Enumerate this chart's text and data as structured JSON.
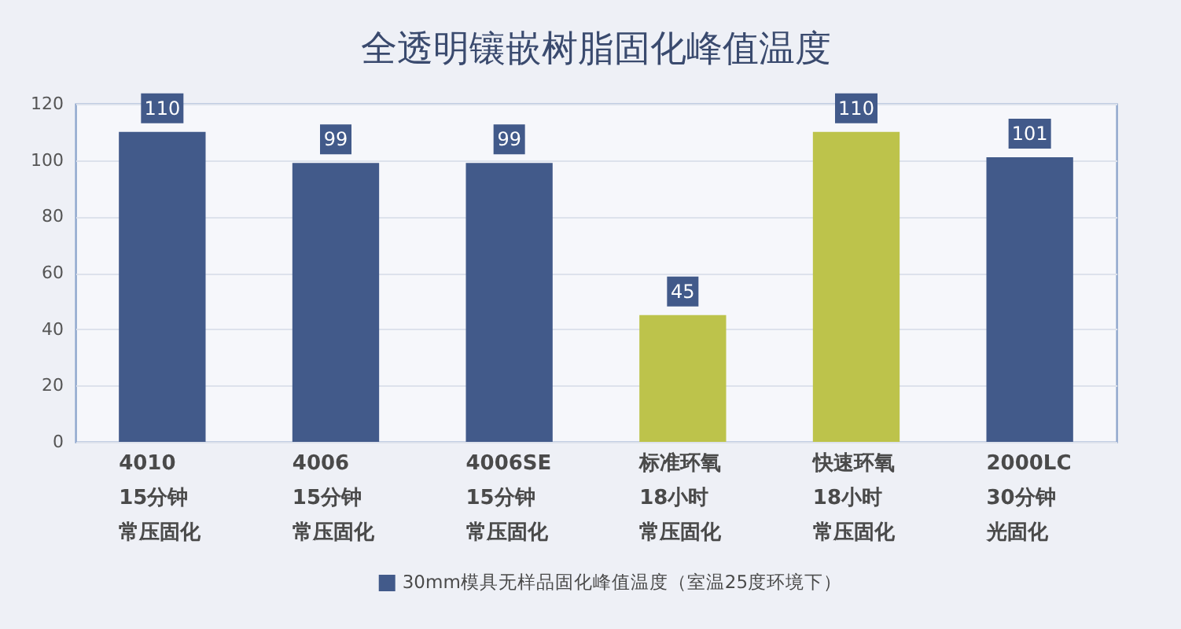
{
  "chart_data": {
    "type": "bar",
    "title": "全透明镶嵌树脂固化峰值温度",
    "categories": [
      "4010\n15分钟常压固化",
      "4006\n15分钟常压固化",
      "4006SE\n15分钟常压固化",
      "标准环氧\n18小时常压固化",
      "快速环氧\n18小时常压固化",
      "2000LC\n30分钟光固化"
    ],
    "series": [
      {
        "name": "30mm模具无样品固化峰值温度（室温25度环境下）",
        "color": "#425a8a",
        "colors": [
          "#425a8a",
          "#425a8a",
          "#425a8a",
          "#bdc34b",
          "#bdc34b",
          "#425a8a"
        ],
        "values": [
          110,
          99,
          99,
          45,
          110,
          101
        ]
      }
    ],
    "ylim": [
      0,
      120
    ],
    "yticks": [
      0,
      20,
      40,
      60,
      80,
      100,
      120
    ],
    "grid": "y",
    "legend": "bottom",
    "data_labels": true
  }
}
